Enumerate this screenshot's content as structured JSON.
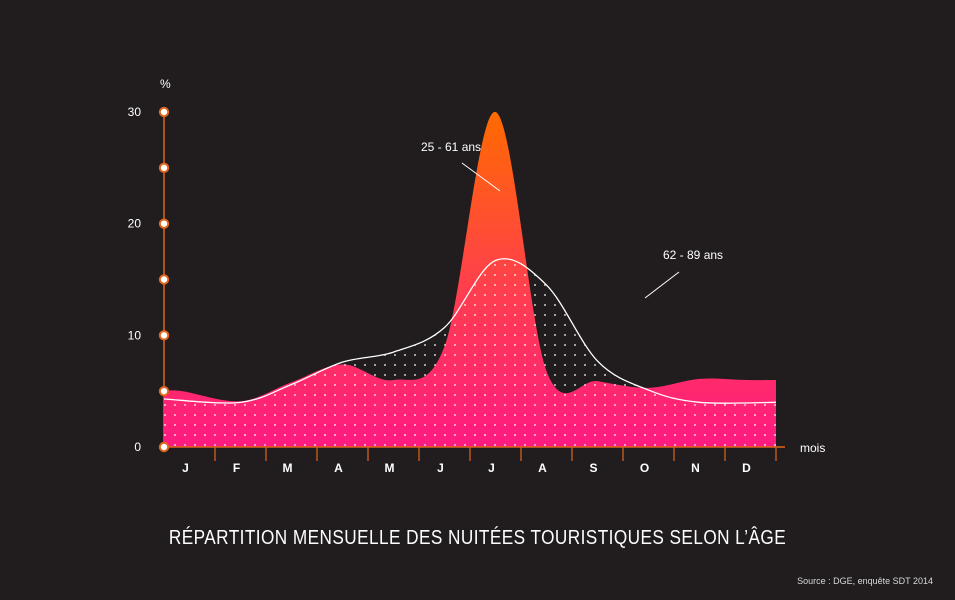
{
  "title": "RÉPARTITION MENSUELLE DES NUITÉES TOURISTIQUES SELON L’ÂGE",
  "source": "Source : DGE, enquête SDT 2014",
  "colors": {
    "background": "#211d1e",
    "pink": "#ff1a82",
    "orange": "#ff6a00",
    "axis": "#e0641c",
    "white": "#ffffff"
  },
  "chart_data": {
    "type": "area",
    "title": "RÉPARTITION MENSUELLE DES NUITÉES TOURISTIQUES SELON L’ÂGE",
    "xlabel": "mois",
    "ylabel": "%",
    "ylim": [
      0,
      30
    ],
    "yticks": [
      0,
      10,
      20,
      30
    ],
    "categories": [
      "J",
      "F",
      "M",
      "A",
      "M",
      "J",
      "J",
      "A",
      "S",
      "O",
      "N",
      "D"
    ],
    "series": [
      {
        "name": "25 - 61 ans",
        "values": [
          5.0,
          4.1,
          5.8,
          7.4,
          6.0,
          9.0,
          30.0,
          6.8,
          5.9,
          5.3,
          6.1,
          6.0
        ]
      },
      {
        "name": "62 - 89 ans",
        "values": [
          4.3,
          4.0,
          5.6,
          7.6,
          8.5,
          10.7,
          16.7,
          14.5,
          7.7,
          5.1,
          4.0,
          4.0
        ]
      }
    ],
    "annotations": [
      "25 - 61 ans",
      "62 - 89 ans"
    ]
  }
}
